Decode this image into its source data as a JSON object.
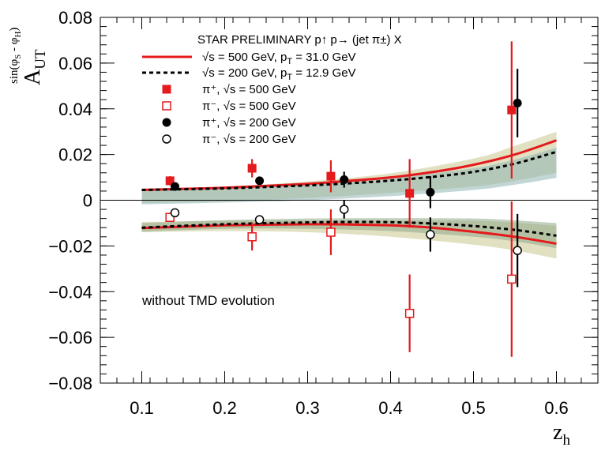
{
  "chart_data": {
    "type": "scatter",
    "title": "",
    "xlabel": "z",
    "xlabel_sub": "h",
    "ylabel": "A",
    "ylabel_sub": "UT",
    "ylabel_sup": "sin(φ",
    "ylabel_sup_s": "S",
    "ylabel_sup_mid": " - φ",
    "ylabel_sup_h": "H",
    "ylabel_sup_end": ")",
    "xlim": [
      0.05,
      0.65
    ],
    "ylim": [
      -0.08,
      0.08
    ],
    "x_ticks": [
      0.1,
      0.2,
      0.3,
      0.4,
      0.5,
      0.6
    ],
    "x_tick_labels": [
      "0.1",
      "0.2",
      "0.3",
      "0.4",
      "0.5",
      "0.6"
    ],
    "y_ticks": [
      -0.08,
      -0.06,
      -0.04,
      -0.02,
      0,
      0.02,
      0.04,
      0.06,
      0.08
    ],
    "y_tick_labels": [
      "−0.08",
      "−0.06",
      "−0.04",
      "−0.02",
      "0",
      "0.02",
      "0.04",
      "0.06",
      "0.08"
    ],
    "grid": false,
    "legend_placement": "top-left",
    "legend_header": "STAR PRELIMINARY p↑ p→ (jet π±) X",
    "annotation": "without TMD evolution",
    "colors": {
      "red": "#e41a1c",
      "black": "#000000",
      "band_yellow": "#c8c890",
      "band_teal": "#8fb4b4",
      "band_green": "#8fa98a"
    },
    "theory_curves": [
      {
        "name": "√s = 500 GeV,  p",
        "name_sub": "T",
        "name_end": " = 31.0 GeV",
        "color": "#e41a1c",
        "style": "solid",
        "upper": {
          "x": [
            0.1,
            0.2,
            0.3,
            0.35,
            0.4,
            0.45,
            0.5,
            0.55,
            0.6
          ],
          "y": [
            0.0045,
            0.0055,
            0.0072,
            0.0085,
            0.01,
            0.0123,
            0.0155,
            0.02,
            0.0262
          ]
        },
        "lower": {
          "x": [
            0.1,
            0.2,
            0.3,
            0.35,
            0.4,
            0.45,
            0.5,
            0.55,
            0.6
          ],
          "y": [
            -0.0122,
            -0.011,
            -0.0105,
            -0.0106,
            -0.011,
            -0.012,
            -0.0138,
            -0.016,
            -0.019
          ]
        }
      },
      {
        "name": "√s = 200 GeV,  p",
        "name_sub": "T",
        "name_end": " = 12.9 GeV",
        "color": "#000000",
        "style": "dashed",
        "upper": {
          "x": [
            0.1,
            0.2,
            0.3,
            0.35,
            0.4,
            0.45,
            0.5,
            0.55,
            0.6
          ],
          "y": [
            0.0045,
            0.0052,
            0.0065,
            0.0074,
            0.0086,
            0.0102,
            0.0124,
            0.016,
            0.0212
          ]
        },
        "lower": {
          "x": [
            0.1,
            0.2,
            0.3,
            0.35,
            0.4,
            0.45,
            0.5,
            0.55,
            0.6
          ],
          "y": [
            -0.012,
            -0.0105,
            -0.0097,
            -0.0095,
            -0.0096,
            -0.0102,
            -0.0113,
            -0.013,
            -0.0155
          ]
        }
      }
    ],
    "bands": [
      {
        "x": [
          0.1,
          0.2,
          0.3,
          0.4,
          0.5,
          0.55,
          0.6
        ],
        "upper": [
          0.0048,
          0.006,
          0.0082,
          0.0118,
          0.0182,
          0.0238,
          0.03
        ],
        "lower": [
          -0.0012,
          -0.0005,
          0.001,
          0.0032,
          0.006,
          0.0085,
          0.012
        ],
        "color": "#c8c890"
      },
      {
        "x": [
          0.1,
          0.2,
          0.3,
          0.4,
          0.5,
          0.55,
          0.6
        ],
        "upper": [
          0.0045,
          0.0052,
          0.007,
          0.0098,
          0.014,
          0.0178,
          0.023
        ],
        "lower": [
          -0.0018,
          -0.001,
          0.0,
          0.0018,
          0.0045,
          0.0068,
          0.0098
        ],
        "color": "#8fb4b4"
      },
      {
        "x": [
          0.1,
          0.2,
          0.3,
          0.4,
          0.5,
          0.55,
          0.6
        ],
        "upper": [
          -0.0095,
          -0.009,
          -0.0088,
          -0.0088,
          -0.009,
          -0.0098,
          -0.0112
        ],
        "lower": [
          -0.014,
          -0.0135,
          -0.014,
          -0.016,
          -0.0195,
          -0.022,
          -0.0255
        ],
        "color": "#c8c890"
      },
      {
        "x": [
          0.1,
          0.2,
          0.3,
          0.4,
          0.5,
          0.55,
          0.6
        ],
        "upper": [
          -0.01,
          -0.0087,
          -0.008,
          -0.0078,
          -0.008,
          -0.0088,
          -0.01
        ],
        "lower": [
          -0.0138,
          -0.0125,
          -0.0125,
          -0.0135,
          -0.016,
          -0.018,
          -0.021
        ],
        "color": "#8fa98a"
      }
    ],
    "series": [
      {
        "name": "π⁺, √s = 500 GeV",
        "marker": "filled-square",
        "color": "#e41a1c",
        "x": [
          0.134,
          0.233,
          0.328,
          0.423,
          0.546
        ],
        "y": [
          0.0085,
          0.014,
          0.0105,
          0.003,
          0.0395
        ],
        "err": [
          0.002,
          0.004,
          0.007,
          0.015,
          0.03
        ]
      },
      {
        "name": "π⁻, √s = 500 GeV",
        "marker": "open-square",
        "color": "#e41a1c",
        "x": [
          0.134,
          0.233,
          0.328,
          0.423,
          0.546
        ],
        "y": [
          -0.0075,
          -0.016,
          -0.014,
          -0.0495,
          -0.0345
        ],
        "err": [
          0.002,
          0.006,
          0.01,
          0.017,
          0.034
        ]
      },
      {
        "name": "π⁺, √s = 200 GeV",
        "marker": "filled-circle",
        "color": "#000000",
        "x": [
          0.14,
          0.242,
          0.344,
          0.448,
          0.553
        ],
        "y": [
          0.006,
          0.0085,
          0.009,
          0.0035,
          0.0425
        ],
        "err": [
          0.001,
          0.0015,
          0.0035,
          0.007,
          0.015
        ]
      },
      {
        "name": "π⁻, √s = 200 GeV",
        "marker": "open-circle",
        "color": "#000000",
        "x": [
          0.14,
          0.242,
          0.344,
          0.448,
          0.553
        ],
        "y": [
          -0.0055,
          -0.0085,
          -0.004,
          -0.015,
          -0.022
        ],
        "err": [
          0.001,
          0.0015,
          0.004,
          0.0075,
          0.016
        ]
      }
    ]
  }
}
